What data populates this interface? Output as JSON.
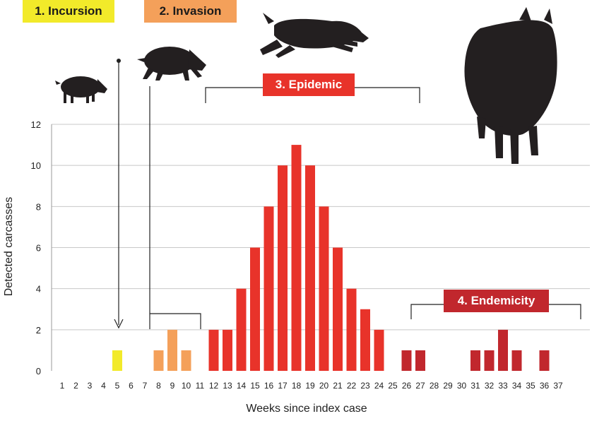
{
  "chart_data": {
    "type": "bar",
    "xlabel": "Weeks since index case",
    "ylabel": "Detected carcasses",
    "ylim": [
      0,
      12
    ],
    "yticks": [
      0,
      2,
      4,
      6,
      8,
      10,
      12
    ],
    "grid": true,
    "categories": [
      "1",
      "2",
      "3",
      "4",
      "5",
      "6",
      "7",
      "8",
      "9",
      "10",
      "11",
      "12",
      "13",
      "14",
      "15",
      "16",
      "17",
      "18",
      "19",
      "20",
      "21",
      "22",
      "23",
      "24",
      "25",
      "26",
      "27",
      "28",
      "29",
      "30",
      "31",
      "32",
      "33",
      "34",
      "35",
      "36",
      "37"
    ],
    "values": [
      0,
      0,
      0,
      0,
      1,
      0,
      0,
      1,
      2,
      1,
      0,
      2,
      2,
      4,
      6,
      8,
      10,
      11,
      10,
      8,
      6,
      4,
      3,
      2,
      0,
      1,
      1,
      0,
      0,
      0,
      1,
      1,
      2,
      1,
      0,
      1,
      0
    ],
    "phases": [
      {
        "label": "1. Incursion",
        "color": "#f2ea2a",
        "weeks": [
          1,
          6
        ]
      },
      {
        "label": "2. Invasion",
        "color": "#f4a05a",
        "weeks": [
          7,
          10
        ]
      },
      {
        "label": "3. Epidemic",
        "color": "#e8332a",
        "weeks": [
          11,
          24
        ]
      },
      {
        "label": "4. Endemicity",
        "color": "#c1272d",
        "weeks": [
          25,
          37
        ]
      }
    ]
  },
  "icons": [
    "boar-small-icon",
    "boar-walking-icon",
    "boar-leaping-icon",
    "boar-standing-icon"
  ]
}
